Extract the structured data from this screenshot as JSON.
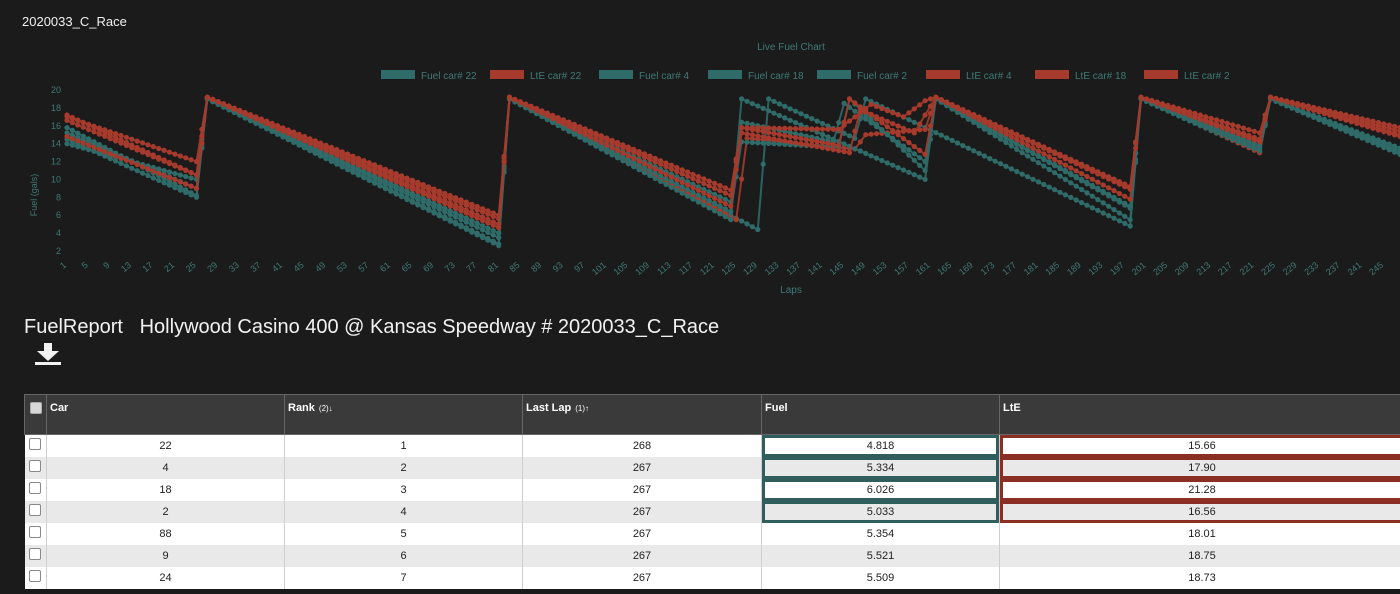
{
  "session_title": "2020033_C_Race",
  "report": {
    "label": "FuelReport",
    "event": "Hollywood Casino 400 @ Kansas Speedway # 2020033_C_Race",
    "download_icon": "download-icon"
  },
  "colors": {
    "fuel": "#2f6b68",
    "lte": "#a63a2c",
    "background": "#1b1b1b",
    "axis_text": "#3f7a76"
  },
  "chart_data": {
    "type": "line",
    "title": "Live Fuel Chart",
    "xlabel": "Laps",
    "ylabel": "Fuel (gals)",
    "ylim": [
      2,
      20
    ],
    "yticks": [
      2,
      4,
      6,
      8,
      10,
      12,
      14,
      16,
      18,
      20
    ],
    "xlim": [
      1,
      248
    ],
    "xticks": [
      1,
      5,
      9,
      13,
      17,
      21,
      25,
      29,
      33,
      37,
      41,
      45,
      49,
      53,
      57,
      61,
      65,
      69,
      73,
      77,
      81,
      85,
      89,
      93,
      97,
      101,
      105,
      109,
      113,
      117,
      121,
      125,
      129,
      133,
      137,
      141,
      145,
      149,
      153,
      157,
      161,
      165,
      169,
      173,
      177,
      181,
      185,
      189,
      193,
      197,
      201,
      205,
      209,
      213,
      217,
      221,
      225,
      229,
      233,
      237,
      241,
      245
    ],
    "legend_position": "top",
    "series": [
      {
        "name": "Fuel car# 22",
        "kind": "fuel",
        "points": [
          [
            1,
            15.8
          ],
          [
            25,
            8.2
          ],
          [
            27,
            19.0
          ],
          [
            81,
            2.6
          ],
          [
            83,
            19.0
          ],
          [
            129,
            4.4
          ],
          [
            131,
            19.0
          ],
          [
            147,
            14.6
          ],
          [
            149,
            19.0
          ],
          [
            198,
            4.8
          ],
          [
            200,
            19.0
          ],
          [
            222,
            13.0
          ],
          [
            224,
            19.0
          ],
          [
            248,
            13.2
          ]
        ]
      },
      {
        "name": "LtE car# 22",
        "kind": "lte",
        "points": [
          [
            1,
            17.2
          ],
          [
            25,
            10.5
          ],
          [
            27,
            19.2
          ],
          [
            81,
            5.6
          ],
          [
            83,
            19.2
          ],
          [
            125,
            5.5
          ],
          [
            127,
            14.6
          ],
          [
            147,
            13.4
          ],
          [
            149,
            15.0
          ],
          [
            160,
            15.6
          ],
          [
            162,
            19.2
          ],
          [
            198,
            8.9
          ],
          [
            200,
            19.2
          ],
          [
            222,
            13.0
          ],
          [
            224,
            19.2
          ],
          [
            248,
            15.0
          ]
        ]
      },
      {
        "name": "Fuel car# 4",
        "kind": "fuel",
        "points": [
          [
            1,
            14.5
          ],
          [
            25,
            8.0
          ],
          [
            27,
            19.0
          ],
          [
            81,
            2.8
          ],
          [
            83,
            19.0
          ],
          [
            124,
            5.5
          ],
          [
            126,
            19.0
          ],
          [
            160,
            10.0
          ],
          [
            162,
            19.0
          ],
          [
            198,
            5.5
          ],
          [
            200,
            19.0
          ],
          [
            222,
            13.5
          ],
          [
            224,
            19.0
          ],
          [
            248,
            12.8
          ]
        ]
      },
      {
        "name": "Fuel car# 18",
        "kind": "fuel",
        "points": [
          [
            1,
            15.2
          ],
          [
            25,
            9.0
          ],
          [
            27,
            19.0
          ],
          [
            81,
            3.5
          ],
          [
            83,
            19.0
          ],
          [
            124,
            7.5
          ],
          [
            126,
            16.4
          ],
          [
            143,
            14.2
          ],
          [
            145,
            18.5
          ],
          [
            160,
            12.0
          ],
          [
            162,
            19.0
          ],
          [
            198,
            6.8
          ],
          [
            200,
            19.0
          ],
          [
            222,
            13.8
          ],
          [
            224,
            19.0
          ],
          [
            248,
            13.5
          ]
        ]
      },
      {
        "name": "Fuel car# 2",
        "kind": "fuel",
        "points": [
          [
            1,
            14.0
          ],
          [
            25,
            10.0
          ],
          [
            27,
            19.0
          ],
          [
            81,
            4.0
          ],
          [
            83,
            19.0
          ],
          [
            124,
            6.4
          ],
          [
            126,
            14.2
          ],
          [
            144,
            13.6
          ],
          [
            146,
            19.0
          ],
          [
            160,
            11.0
          ],
          [
            162,
            19.0
          ],
          [
            198,
            7.0
          ],
          [
            200,
            19.0
          ],
          [
            222,
            13.2
          ],
          [
            224,
            19.0
          ],
          [
            248,
            13.0
          ]
        ]
      },
      {
        "name": "LtE car# 4",
        "kind": "lte",
        "points": [
          [
            1,
            16.6
          ],
          [
            25,
            10.5
          ],
          [
            27,
            19.2
          ],
          [
            81,
            5.0
          ],
          [
            83,
            19.2
          ],
          [
            124,
            7.0
          ],
          [
            126,
            15.2
          ],
          [
            146,
            13.0
          ],
          [
            148,
            17.8
          ],
          [
            158,
            15.2
          ],
          [
            162,
            19.2
          ],
          [
            198,
            9.0
          ],
          [
            200,
            19.2
          ],
          [
            222,
            14.5
          ],
          [
            224,
            19.2
          ],
          [
            248,
            15.4
          ]
        ]
      },
      {
        "name": "LtE car# 18",
        "kind": "lte",
        "points": [
          [
            1,
            14.8
          ],
          [
            25,
            9.0
          ],
          [
            27,
            19.2
          ],
          [
            81,
            4.6
          ],
          [
            83,
            19.2
          ],
          [
            124,
            8.2
          ],
          [
            126,
            15.8
          ],
          [
            144,
            13.8
          ],
          [
            146,
            19.0
          ],
          [
            160,
            12.8
          ],
          [
            162,
            19.2
          ],
          [
            198,
            7.8
          ],
          [
            200,
            19.2
          ],
          [
            222,
            14.2
          ],
          [
            224,
            19.2
          ],
          [
            248,
            14.8
          ]
        ]
      },
      {
        "name": "LtE car# 2",
        "kind": "lte",
        "points": [
          [
            1,
            17.0
          ],
          [
            25,
            12.0
          ],
          [
            27,
            19.2
          ],
          [
            81,
            6.0
          ],
          [
            83,
            19.2
          ],
          [
            124,
            8.8
          ],
          [
            126,
            15.8
          ],
          [
            144,
            15.6
          ],
          [
            150,
            18.4
          ],
          [
            156,
            17.0
          ],
          [
            160,
            18.8
          ],
          [
            162,
            19.2
          ],
          [
            198,
            9.2
          ],
          [
            200,
            19.2
          ],
          [
            222,
            15.2
          ],
          [
            224,
            19.2
          ],
          [
            248,
            15.8
          ]
        ]
      }
    ]
  },
  "table": {
    "columns": [
      {
        "label": "Car",
        "sort": ""
      },
      {
        "label": "Rank",
        "sort": "(2)↓"
      },
      {
        "label": "Last Lap",
        "sort": "(1)↑"
      },
      {
        "label": "Fuel",
        "sort": ""
      },
      {
        "label": "LtE",
        "sort": ""
      }
    ],
    "rows": [
      {
        "car": "22",
        "rank": "1",
        "last_lap": "268",
        "fuel": "4.818",
        "lte": "15.66",
        "highlight": true
      },
      {
        "car": "4",
        "rank": "2",
        "last_lap": "267",
        "fuel": "5.334",
        "lte": "17.90",
        "highlight": true
      },
      {
        "car": "18",
        "rank": "3",
        "last_lap": "267",
        "fuel": "6.026",
        "lte": "21.28",
        "highlight": true
      },
      {
        "car": "2",
        "rank": "4",
        "last_lap": "267",
        "fuel": "5.033",
        "lte": "16.56",
        "highlight": true
      },
      {
        "car": "88",
        "rank": "5",
        "last_lap": "267",
        "fuel": "5.354",
        "lte": "18.01",
        "highlight": false
      },
      {
        "car": "9",
        "rank": "6",
        "last_lap": "267",
        "fuel": "5.521",
        "lte": "18.75",
        "highlight": false
      },
      {
        "car": "24",
        "rank": "7",
        "last_lap": "267",
        "fuel": "5.509",
        "lte": "18.73",
        "highlight": false
      }
    ]
  }
}
